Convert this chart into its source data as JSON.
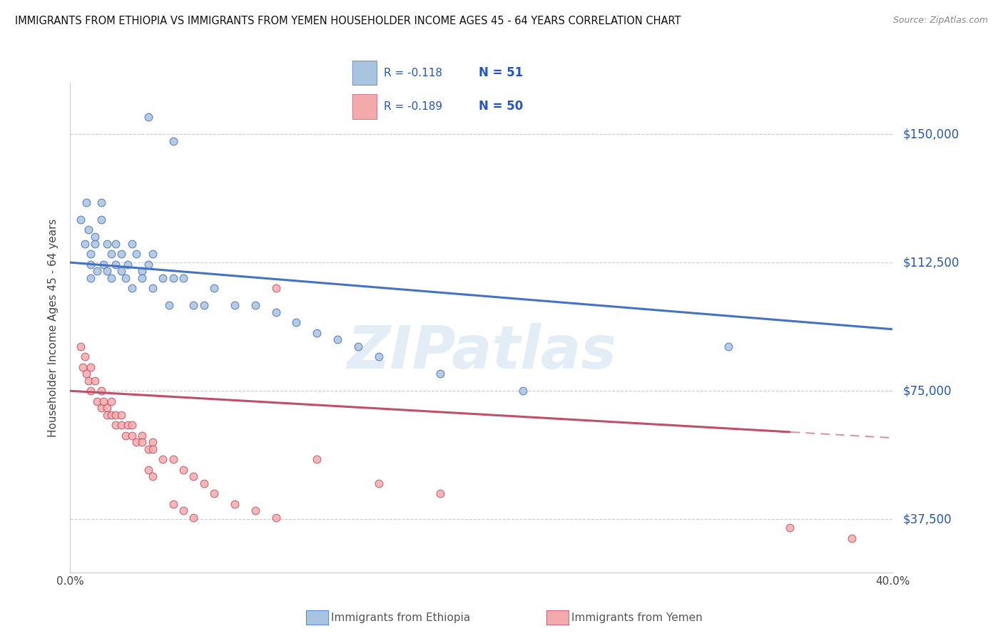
{
  "title": "IMMIGRANTS FROM ETHIOPIA VS IMMIGRANTS FROM YEMEN HOUSEHOLDER INCOME AGES 45 - 64 YEARS CORRELATION CHART",
  "source": "Source: ZipAtlas.com",
  "ylabel": "Householder Income Ages 45 - 64 years",
  "xlim": [
    0.0,
    0.4
  ],
  "ylim": [
    22000,
    165000
  ],
  "xtick_vals": [
    0.0,
    0.05,
    0.1,
    0.15,
    0.2,
    0.25,
    0.3,
    0.35,
    0.4
  ],
  "xtick_labels": [
    "0.0%",
    "",
    "",
    "",
    "",
    "",
    "",
    "",
    "40.0%"
  ],
  "ytick_values": [
    37500,
    75000,
    112500,
    150000
  ],
  "ytick_labels": [
    "$37,500",
    "$75,000",
    "$112,500",
    "$150,000"
  ],
  "ethiopia_R": "-0.118",
  "ethiopia_N": "51",
  "yemen_R": "-0.189",
  "yemen_N": "50",
  "ethiopia_color": "#A8C4E0",
  "ethiopia_line_color": "#4472C4",
  "yemen_color": "#F4AAAA",
  "yemen_line_color": "#C0506A",
  "watermark": "ZIPatlas",
  "legend_ethiopia": "Immigrants from Ethiopia",
  "legend_yemen": "Immigrants from Yemen",
  "ethiopia_scatter_x": [
    0.005,
    0.007,
    0.008,
    0.009,
    0.01,
    0.01,
    0.01,
    0.012,
    0.012,
    0.013,
    0.015,
    0.015,
    0.016,
    0.018,
    0.018,
    0.02,
    0.02,
    0.022,
    0.022,
    0.025,
    0.025,
    0.027,
    0.028,
    0.03,
    0.03,
    0.032,
    0.035,
    0.035,
    0.038,
    0.04,
    0.04,
    0.045,
    0.048,
    0.05,
    0.055,
    0.06,
    0.065,
    0.07,
    0.08,
    0.09,
    0.1,
    0.11,
    0.12,
    0.13,
    0.14,
    0.15,
    0.18,
    0.22,
    0.038,
    0.05,
    0.32
  ],
  "ethiopia_scatter_y": [
    125000,
    118000,
    130000,
    122000,
    115000,
    112000,
    108000,
    120000,
    118000,
    110000,
    130000,
    125000,
    112000,
    118000,
    110000,
    115000,
    108000,
    118000,
    112000,
    115000,
    110000,
    108000,
    112000,
    118000,
    105000,
    115000,
    110000,
    108000,
    112000,
    115000,
    105000,
    108000,
    100000,
    108000,
    108000,
    100000,
    100000,
    105000,
    100000,
    100000,
    98000,
    95000,
    92000,
    90000,
    88000,
    85000,
    80000,
    75000,
    155000,
    148000,
    88000
  ],
  "yemen_scatter_x": [
    0.005,
    0.006,
    0.007,
    0.008,
    0.009,
    0.01,
    0.01,
    0.012,
    0.013,
    0.015,
    0.015,
    0.016,
    0.018,
    0.018,
    0.02,
    0.02,
    0.022,
    0.022,
    0.025,
    0.025,
    0.027,
    0.028,
    0.03,
    0.03,
    0.032,
    0.035,
    0.035,
    0.038,
    0.04,
    0.04,
    0.045,
    0.05,
    0.055,
    0.06,
    0.065,
    0.07,
    0.08,
    0.09,
    0.1,
    0.12,
    0.15,
    0.18,
    0.038,
    0.04,
    0.05,
    0.055,
    0.06,
    0.1,
    0.35,
    0.38
  ],
  "yemen_scatter_y": [
    88000,
    82000,
    85000,
    80000,
    78000,
    82000,
    75000,
    78000,
    72000,
    75000,
    70000,
    72000,
    70000,
    68000,
    72000,
    68000,
    68000,
    65000,
    68000,
    65000,
    62000,
    65000,
    65000,
    62000,
    60000,
    62000,
    60000,
    58000,
    60000,
    58000,
    55000,
    55000,
    52000,
    50000,
    48000,
    45000,
    42000,
    40000,
    105000,
    55000,
    48000,
    45000,
    52000,
    50000,
    42000,
    40000,
    38000,
    38000,
    35000,
    32000
  ]
}
